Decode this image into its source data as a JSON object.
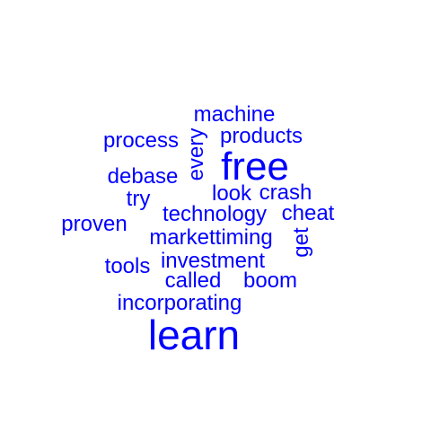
{
  "word_color": "#0000ff",
  "background_color": "#ffffff",
  "words": [
    {
      "text": "machine",
      "weight": 1,
      "rotated": false
    },
    {
      "text": "process",
      "weight": 1,
      "rotated": false
    },
    {
      "text": "every",
      "weight": 1,
      "rotated": true
    },
    {
      "text": "products",
      "weight": 1,
      "rotated": false
    },
    {
      "text": "free",
      "weight": 2,
      "rotated": false
    },
    {
      "text": "debase",
      "weight": 1,
      "rotated": false
    },
    {
      "text": "try",
      "weight": 1,
      "rotated": false
    },
    {
      "text": "look",
      "weight": 1,
      "rotated": false
    },
    {
      "text": "crash",
      "weight": 1,
      "rotated": false
    },
    {
      "text": "proven",
      "weight": 1,
      "rotated": false
    },
    {
      "text": "technology",
      "weight": 1,
      "rotated": false
    },
    {
      "text": "cheat",
      "weight": 1,
      "rotated": false
    },
    {
      "text": "markettiming",
      "weight": 1,
      "rotated": false
    },
    {
      "text": "get",
      "weight": 1,
      "rotated": true
    },
    {
      "text": "tools",
      "weight": 1,
      "rotated": false
    },
    {
      "text": "investment",
      "weight": 1,
      "rotated": false
    },
    {
      "text": "called",
      "weight": 1,
      "rotated": false
    },
    {
      "text": "boom",
      "weight": 1,
      "rotated": false
    },
    {
      "text": "incorporating",
      "weight": 1,
      "rotated": false
    },
    {
      "text": "learn",
      "weight": 2,
      "rotated": false
    }
  ]
}
